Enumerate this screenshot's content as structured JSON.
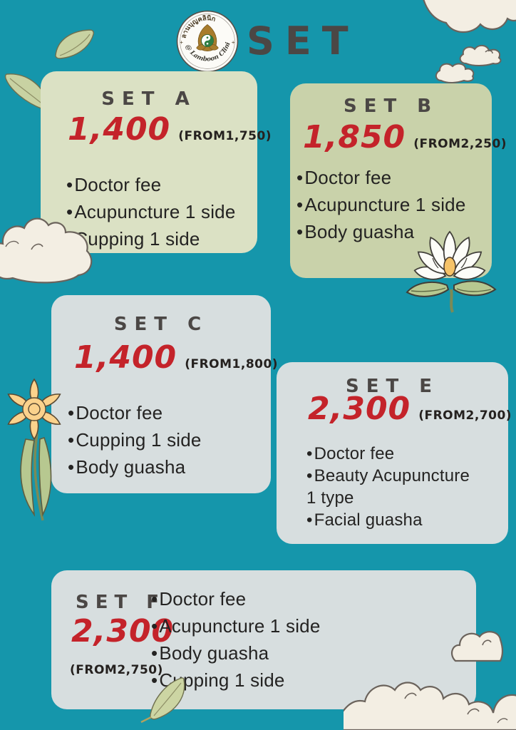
{
  "header": {
    "title": "SET"
  },
  "logo": {
    "thai_name": "ลานบุญคลินิก",
    "clinic_name": "@ Lamboon Clinic",
    "plus_mark": "+"
  },
  "cards": [
    {
      "id": "A",
      "title": "SET A",
      "price": "1,400",
      "original": "(FROM1,750)",
      "items": [
        "Doctor fee",
        "Acupuncture 1 side",
        "Cupping 1 side"
      ]
    },
    {
      "id": "B",
      "title": "SET B",
      "price": "1,850",
      "original": "(FROM2,250)",
      "items": [
        "Doctor fee",
        "Acupuncture 1 side",
        "Body guasha"
      ]
    },
    {
      "id": "C",
      "title": "SET C",
      "price": "1,400",
      "original": "(FROM1,800)",
      "items": [
        "Doctor fee",
        "Cupping 1 side",
        "Body guasha"
      ]
    },
    {
      "id": "E",
      "title": "SET E",
      "price": "2,300",
      "original": "(FROM2,700)",
      "items": [
        "Doctor fee",
        "Beauty Acupuncture 1 type",
        "Facial guasha"
      ]
    },
    {
      "id": "F",
      "title": "SET F",
      "price": "2,300",
      "original": "(FROM2,750)",
      "items": [
        "Doctor fee",
        "Acupuncture 1 side",
        "Body guasha",
        "Cupping 1 side"
      ]
    }
  ],
  "decorations": {
    "icons": [
      "leaf-icon",
      "cloud-icon",
      "daffodil-flower-icon",
      "lotus-flower-icon",
      "clinic-logo"
    ]
  },
  "colors": {
    "bg": "#1596ab",
    "card_green": "#dbe1c4",
    "card_green_dark": "#c9d2aa",
    "card_gray": "#d7dedf",
    "price_red": "#c4232a",
    "title_gray": "#4b4745",
    "text_dark": "#25211f",
    "cloud_cream": "#f3eee3",
    "leaf_green": "#c8d2a2",
    "petal_yellow": "#fbd28c",
    "flower_white": "#fdfdf8"
  }
}
